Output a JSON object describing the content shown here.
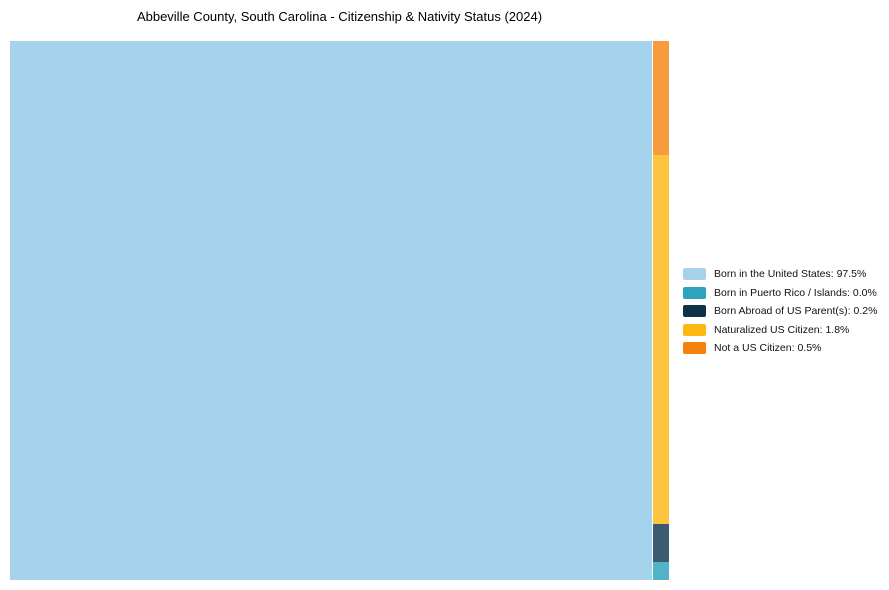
{
  "chart_data": {
    "type": "treemap",
    "title": "Abbeville County, South Carolina - Citizenship & Nativity Status (2024)",
    "subtitle": "",
    "legend_position": "right",
    "background_color": "#ffffff",
    "series": [
      {
        "label": "Born in the United States",
        "value_pct": 97.5,
        "legend_text": "Born in the United States: 97.5%",
        "legend_color": "#A8D2EA",
        "tile_color": "#A4D3EB"
      },
      {
        "label": "Born in Puerto Rico / Islands",
        "value_pct": 0.0,
        "legend_text": "Born in Puerto Rico / Islands: 0.0%",
        "legend_color": "#2EA3BD",
        "tile_color": "#52B2C6"
      },
      {
        "label": "Born Abroad of US Parent(s)",
        "value_pct": 0.2,
        "legend_text": "Born Abroad of US Parent(s): 0.2%",
        "legend_color": "#0F3149",
        "tile_color": "#3A5B70"
      },
      {
        "label": "Naturalized US Citizen",
        "value_pct": 1.8,
        "legend_text": "Naturalized US Citizen: 1.8%",
        "legend_color": "#FDB912",
        "tile_color": "#FDC53F"
      },
      {
        "label": "Not a US Citizen",
        "value_pct": 0.5,
        "legend_text": "Not a US Citizen: 0.5%",
        "legend_color": "#F5820D",
        "tile_color": "#F79B3C"
      }
    ]
  }
}
